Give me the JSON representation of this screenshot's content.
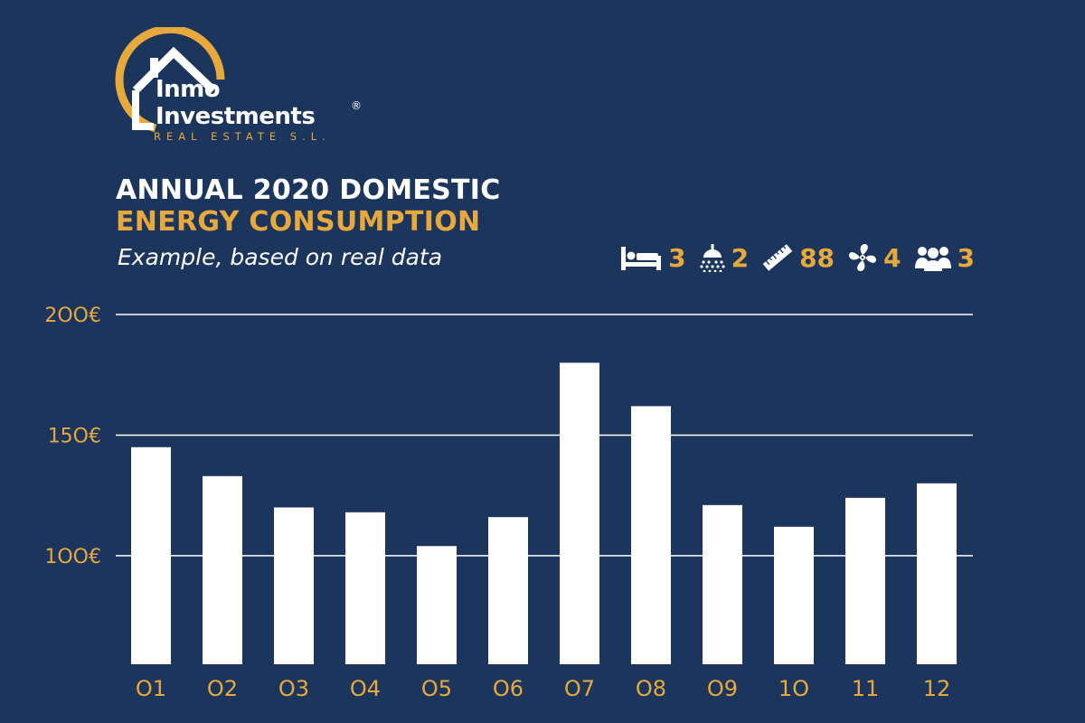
{
  "logo": {
    "line1": "Inmo",
    "line2": "Investments",
    "registered": "®",
    "subline": "REAL ESTATE S.L."
  },
  "header": {
    "title_line1": "ANNUAL 2020 DOMESTIC",
    "title_line2": "ENERGY CONSUMPTION",
    "subtitle": "Example, based on real data"
  },
  "features": [
    {
      "icon": "bed-icon",
      "value": "3"
    },
    {
      "icon": "shower-icon",
      "value": "2"
    },
    {
      "icon": "ruler-icon",
      "value": "88"
    },
    {
      "icon": "fan-icon",
      "value": "4"
    },
    {
      "icon": "people-icon",
      "value": "3"
    }
  ],
  "colors": {
    "background": "#1b355c",
    "accent": "#e7a93b",
    "bar": "#ffffff",
    "gridline": "#ffffff"
  },
  "chart_data": {
    "type": "bar",
    "categories": [
      "O1",
      "O2",
      "O3",
      "O4",
      "O5",
      "O6",
      "O7",
      "O8",
      "O9",
      "1O",
      "11",
      "12"
    ],
    "values": [
      145,
      133,
      120,
      118,
      104,
      116,
      180,
      162,
      121,
      112,
      124,
      130
    ],
    "ylim": [
      55,
      200
    ],
    "yticks": [
      100,
      150,
      200
    ],
    "ytick_labels": [
      "1OO€",
      "15O€",
      "2OO€"
    ],
    "grid": true,
    "legend": "none"
  }
}
